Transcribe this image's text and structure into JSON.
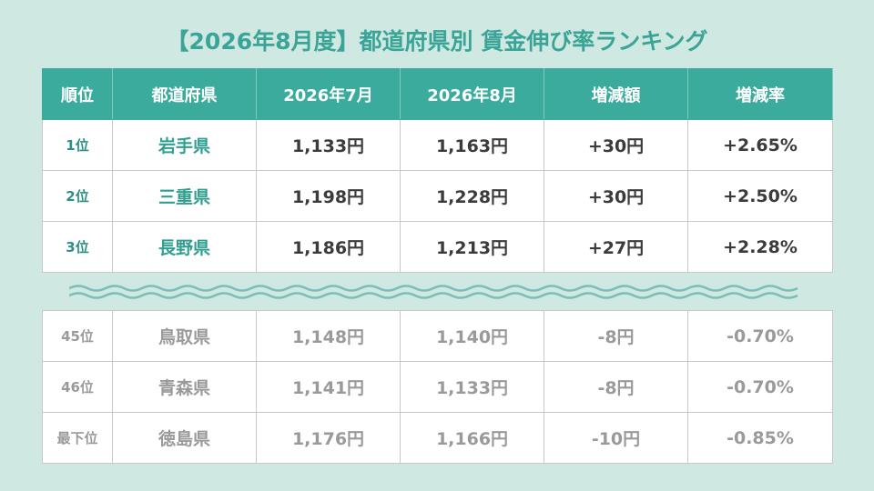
{
  "title": "【2026年8月度】都道府県別 賃金伸び率ランキング",
  "table": {
    "header": [
      "順位",
      "都道府県",
      "2026年7月",
      "2026年8月",
      "増減額",
      "増減率"
    ],
    "top_rows": [
      [
        "1位",
        "岩手県",
        "1,133円",
        "1,163円",
        "+30円",
        "+2.65%"
      ],
      [
        "2位",
        "三重県",
        "1,198円",
        "1,228円",
        "+30円",
        "+2.50%"
      ],
      [
        "3位",
        "長野県",
        "1,186円",
        "1,213円",
        "+27円",
        "+2.28%"
      ]
    ],
    "bottom_rows": [
      [
        "45位",
        "鳥取県",
        "1,148円",
        "1,140円",
        "-8円",
        "-0.70%"
      ],
      [
        "46位",
        "青森県",
        "1,141円",
        "1,133円",
        "-8円",
        "-0.70%"
      ],
      [
        "最下位",
        "徳島県",
        "1,176円",
        "1,166円",
        "-10円",
        "-0.85%"
      ]
    ]
  }
}
